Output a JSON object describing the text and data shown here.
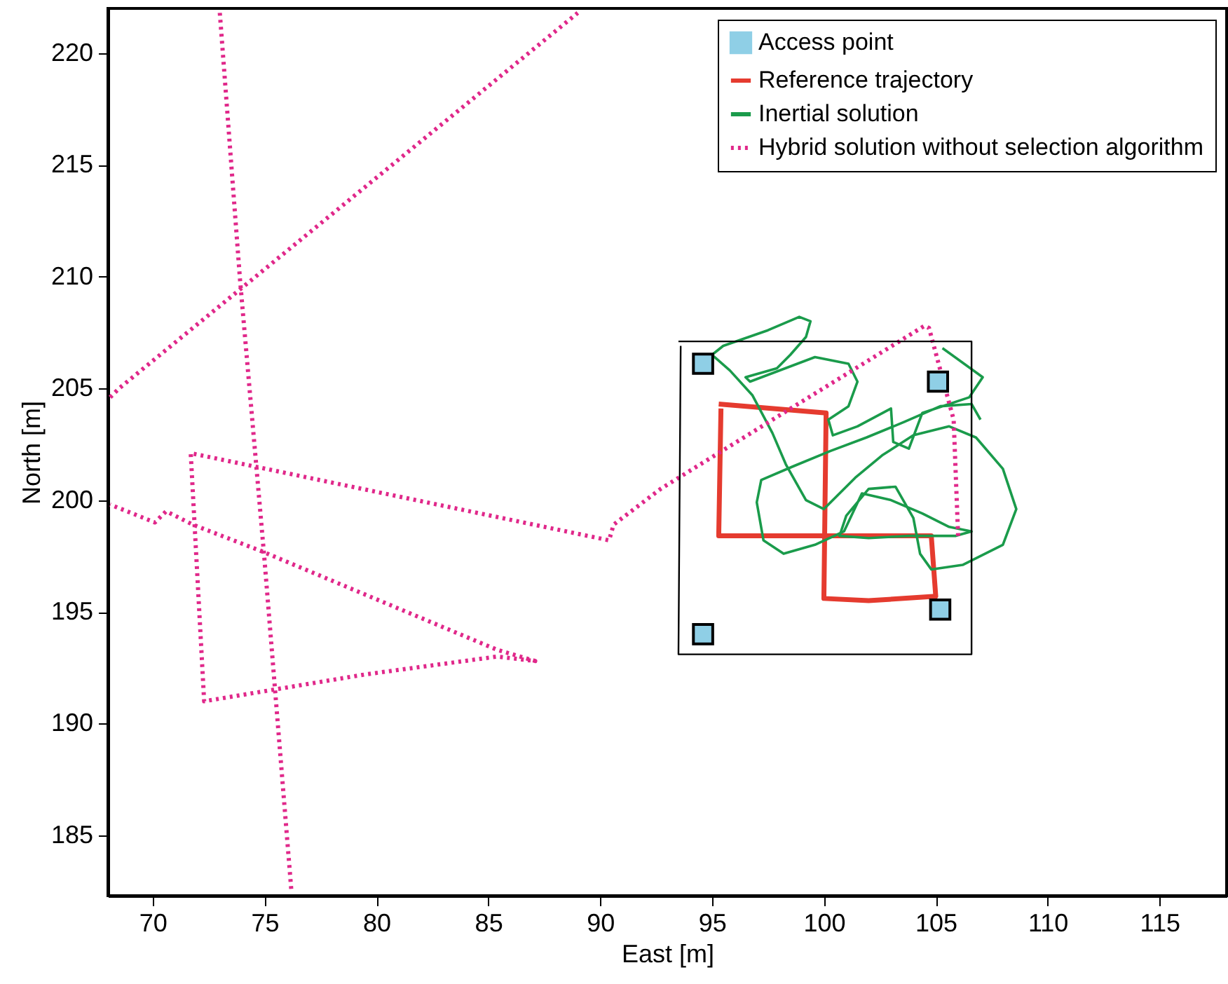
{
  "chart_data": {
    "type": "line",
    "xlabel": "East [m]",
    "ylabel": "North [m]",
    "xlim": [
      68,
      118
    ],
    "ylim": [
      182.3,
      222
    ],
    "xticks": [
      70,
      75,
      80,
      85,
      90,
      95,
      100,
      105,
      110,
      115
    ],
    "yticks": [
      185,
      190,
      195,
      200,
      205,
      210,
      215,
      220
    ],
    "legend": "top right",
    "series": [
      {
        "name": "Access point",
        "type": "scatter",
        "marker": "square",
        "color": "#8fcfe6",
        "x": [
          94.6,
          105.1,
          105.2,
          94.6
        ],
        "values": [
          206.1,
          205.3,
          195.1,
          194.0
        ]
      },
      {
        "name": "Reference trajectory",
        "color": "#e53b2f",
        "x": [
          95.3,
          100.1,
          100.0,
          102.0,
          105.0,
          104.8,
          95.3,
          95.4
        ],
        "values": [
          204.3,
          203.9,
          195.6,
          195.5,
          195.7,
          198.4,
          198.4,
          204.1
        ]
      },
      {
        "name": "Inertial solution",
        "color": "#1a9b4b",
        "x": [
          105.3,
          107.1,
          106.5,
          104.4,
          103.8,
          103.1,
          103.0,
          101.5,
          100.4,
          100.2,
          101.1,
          101.5,
          101.1,
          99.6,
          96.7,
          96.5,
          97.9,
          98.5,
          99.2,
          99.4,
          98.9,
          97.5,
          95.5,
          95.0,
          95.8,
          96.8,
          97.7,
          98.3,
          99.2,
          100.0,
          101.4,
          102.6,
          104.0,
          105.6,
          106.8,
          108.0,
          108.6,
          108.0,
          106.2,
          104.8,
          104.3,
          104.0,
          103.2,
          102.0,
          101.0,
          100.7,
          102.0,
          103.8,
          105.9,
          106.6,
          105.6,
          104.4,
          103.0,
          101.7,
          100.9,
          99.6,
          98.2,
          97.3,
          97.0,
          97.2,
          98.6,
          100.3,
          101.9,
          103.6,
          105.2,
          106.6,
          107.0
        ],
        "values": [
          206.8,
          205.5,
          204.6,
          203.9,
          202.3,
          202.6,
          204.1,
          203.3,
          202.9,
          203.6,
          204.2,
          205.3,
          206.1,
          206.4,
          205.3,
          205.5,
          205.9,
          206.5,
          207.3,
          208.0,
          208.2,
          207.6,
          206.9,
          206.5,
          205.8,
          204.7,
          203.0,
          201.6,
          200.0,
          199.6,
          201.0,
          202.0,
          202.9,
          203.3,
          202.8,
          201.4,
          199.6,
          198.0,
          197.1,
          196.9,
          197.6,
          199.2,
          200.6,
          200.5,
          199.3,
          198.4,
          198.3,
          198.4,
          198.4,
          198.6,
          198.8,
          199.4,
          200.0,
          200.3,
          198.6,
          198.0,
          197.6,
          198.2,
          199.9,
          200.9,
          201.5,
          202.2,
          202.8,
          203.5,
          204.2,
          204.3,
          203.6
        ]
      },
      {
        "name": "Hybrid solution without selection algorithm",
        "line_style": "dotted",
        "color": "#e0288a",
        "x": [
          106.0,
          105.8,
          104.7,
          104.5,
          92.7,
          90.6,
          90.4,
          71.7,
          72.3,
          79.5,
          85.4,
          87.1,
          85.4,
          74.9,
          71.8,
          70.6,
          70.1,
          68.1,
          null,
          68.1,
          68.5,
          89.0,
          null,
          73.0,
          73.9,
          75.0,
          76.2
        ],
        "values": [
          198.4,
          203.6,
          207.7,
          207.8,
          200.5,
          198.9,
          198.2,
          202.1,
          191.0,
          192.2,
          193.0,
          192.8,
          193.3,
          197.7,
          198.9,
          199.5,
          199.0,
          199.8,
          null,
          204.6,
          205.0,
          221.8,
          null,
          221.8,
          209.9,
          197.3,
          182.5
        ]
      },
      {
        "color": "#000000",
        "x": [
          93.5,
          106.6,
          106.6,
          93.5,
          93.6
        ],
        "values": [
          207.1,
          207.1,
          193.1,
          193.1,
          206.9
        ]
      }
    ]
  }
}
